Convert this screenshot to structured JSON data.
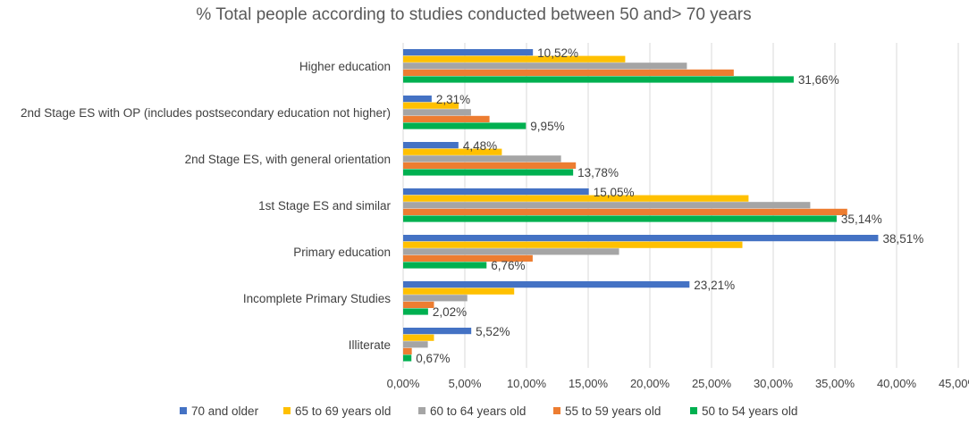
{
  "chart_data": {
    "type": "bar",
    "orientation": "horizontal",
    "title": "% Total people according to studies conducted between 50 and> 70 years",
    "xlabel": "",
    "ylabel": "",
    "xlim": [
      0,
      45
    ],
    "grid": true,
    "legend_position": "bottom",
    "x_ticks": [
      0,
      5,
      10,
      15,
      20,
      25,
      30,
      35,
      40,
      45
    ],
    "x_tick_labels": [
      "0,00%",
      "5,00%",
      "10,00%",
      "15,00%",
      "20,00%",
      "25,00%",
      "30,00%",
      "35,00%",
      "40,00%",
      "45,00%"
    ],
    "categories": [
      "Higher education",
      "2nd Stage ES with OP (includes postsecondary education not higher)",
      "2nd Stage ES, with general orientation",
      "1st Stage ES and similar",
      "Primary education",
      "Incomplete Primary Studies",
      "Illiterate"
    ],
    "series": [
      {
        "name": "70 and older",
        "color": "#4472C4",
        "values": [
          10.52,
          2.31,
          4.48,
          15.05,
          38.51,
          23.21,
          5.52
        ]
      },
      {
        "name": "65 to 69 years old",
        "color": "#FFC000",
        "values": [
          18.0,
          4.5,
          8.0,
          28.0,
          27.5,
          9.0,
          2.5
        ]
      },
      {
        "name": "60 to 64 years old",
        "color": "#A5A5A5",
        "values": [
          23.0,
          5.5,
          12.8,
          33.0,
          17.5,
          5.2,
          2.0
        ]
      },
      {
        "name": "55 to 59 years old",
        "color": "#ED7D31",
        "values": [
          26.8,
          7.0,
          14.0,
          36.0,
          10.5,
          2.5,
          0.7
        ]
      },
      {
        "name": "50 to 54 years old",
        "color": "#00B050",
        "values": [
          31.66,
          9.95,
          13.78,
          35.14,
          6.76,
          2.02,
          0.67
        ]
      }
    ],
    "data_labels": [
      {
        "category": "Higher education",
        "series": "70 and older",
        "text": "10,52%"
      },
      {
        "category": "Higher education",
        "series": "50 to 54 years old",
        "text": "31,66%"
      },
      {
        "category": "2nd Stage ES with OP (includes postsecondary education not higher)",
        "series": "70 and older",
        "text": "2,31%"
      },
      {
        "category": "2nd Stage ES with OP (includes postsecondary education not higher)",
        "series": "50 to 54 years old",
        "text": "9,95%"
      },
      {
        "category": "2nd Stage ES, with general orientation",
        "series": "70 and older",
        "text": "4,48%"
      },
      {
        "category": "2nd Stage ES, with general orientation",
        "series": "50 to 54 years old",
        "text": "13,78%"
      },
      {
        "category": "1st Stage ES and similar",
        "series": "70 and older",
        "text": "15,05%"
      },
      {
        "category": "1st Stage ES and similar",
        "series": "50 to 54 years old",
        "text": "35,14%"
      },
      {
        "category": "Primary education",
        "series": "70 and older",
        "text": "38,51%"
      },
      {
        "category": "Primary education",
        "series": "50 to 54 years old",
        "text": "6,76%"
      },
      {
        "category": "Incomplete Primary Studies",
        "series": "70 and older",
        "text": "23,21%"
      },
      {
        "category": "Incomplete Primary Studies",
        "series": "50 to 54 years old",
        "text": "2,02%"
      },
      {
        "category": "Illiterate",
        "series": "70 and older",
        "text": "5,52%"
      },
      {
        "category": "Illiterate",
        "series": "50 to 54 years old",
        "text": "0,67%"
      }
    ]
  }
}
